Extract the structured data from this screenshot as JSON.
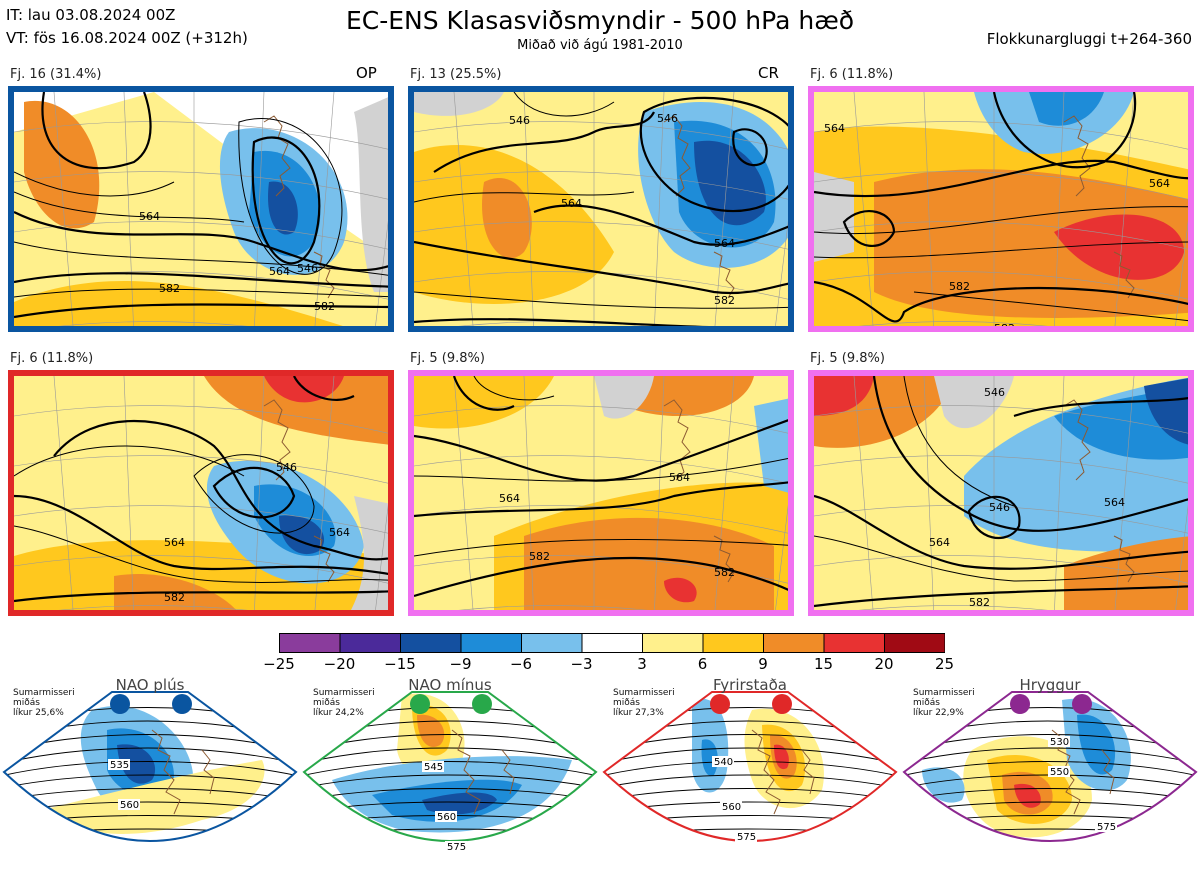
{
  "header": {
    "it_line": "IT: lau 03.08.2024 00Z",
    "vt_line": "VT: fös 16.08.2024 00Z  (+312h)",
    "title": "EC-ENS Klasasviðsmyndir - 500 hPa hæð",
    "subtitle": "Miðað við ágú 1981-2010",
    "window": "Flokkunargluggi t+264-360"
  },
  "clusters": [
    {
      "label": "Fj. 16 (31.4%)",
      "tag": "OP",
      "border": "#0a55a0",
      "contours": [
        "564",
        "546",
        "564",
        "582",
        "582"
      ]
    },
    {
      "label": "Fj. 13 (25.5%)",
      "tag": "CR",
      "border": "#0a55a0",
      "contours": [
        "546",
        "546",
        "564",
        "564",
        "582",
        "582"
      ]
    },
    {
      "label": "Fj. 6 (11.8%)",
      "tag": "",
      "border": "#f070f0",
      "contours": [
        "564",
        "564",
        "582",
        "582"
      ]
    },
    {
      "label": "Fj. 6 (11.8%)",
      "tag": "",
      "border": "#e02828",
      "contours": [
        "546",
        "564",
        "564",
        "582"
      ]
    },
    {
      "label": "Fj. 5 (9.8%)",
      "tag": "",
      "border": "#f070f0",
      "contours": [
        "564",
        "564",
        "582",
        "582"
      ]
    },
    {
      "label": "Fj. 5 (9.8%)",
      "tag": "",
      "border": "#f070f0",
      "contours": [
        "546",
        "546",
        "564",
        "564",
        "582"
      ]
    }
  ],
  "colorbar": {
    "ticks": [
      "−25",
      "−20",
      "−15",
      "−9",
      "−6",
      "−3",
      "3",
      "6",
      "9",
      "15",
      "20",
      "25"
    ],
    "colors": [
      "#8a3c9c",
      "#4b2a9a",
      "#1450a0",
      "#1e8cd8",
      "#78c0ec",
      "#ffffff",
      "#fff08c",
      "#ffc81e",
      "#f08c28",
      "#e83232",
      "#a00a14"
    ]
  },
  "regimes": [
    {
      "title": "NAO plús",
      "note": [
        "Sumarmisseri",
        "miðás",
        "líkur 25,6%"
      ],
      "color": "#0a55a0",
      "contours": [
        "535",
        "560"
      ]
    },
    {
      "title": "NAO mínus",
      "note": [
        "Sumarmisseri",
        "miðás",
        "líkur 24,2%"
      ],
      "color": "#28a84a",
      "contours": [
        "545",
        "560",
        "575"
      ]
    },
    {
      "title": "Fyrirstaða",
      "note": [
        "Sumarmisseri",
        "miðás",
        "líkur 27,3%"
      ],
      "color": "#e02828",
      "contours": [
        "540",
        "560",
        "575"
      ]
    },
    {
      "title": "Hryggur",
      "note": [
        "Sumarmisseri",
        "miðás",
        "líkur 22,9%"
      ],
      "color": "#8c2890",
      "contours": [
        "530",
        "550",
        "575"
      ]
    }
  ]
}
